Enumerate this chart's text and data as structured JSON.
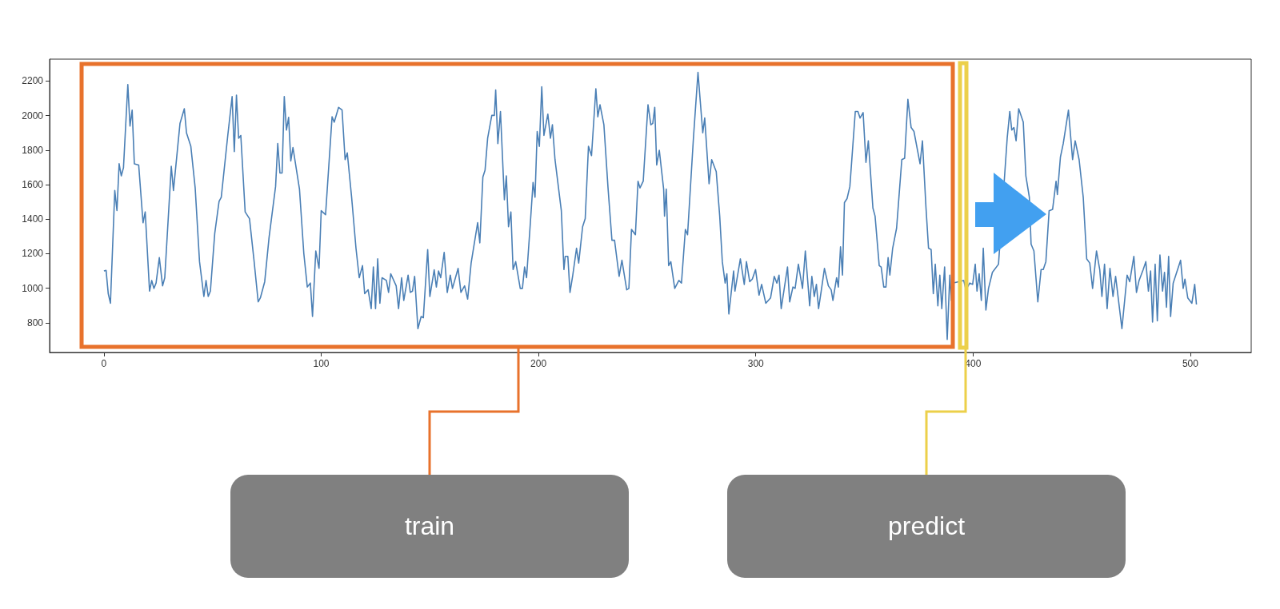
{
  "chart_data": {
    "type": "line",
    "xlim": [
      -25,
      528
    ],
    "ylim": [
      628,
      2327
    ],
    "xticks": [
      0,
      100,
      200,
      300,
      400,
      500
    ],
    "yticks": [
      800,
      1000,
      1200,
      1400,
      1600,
      1800,
      2000,
      2200
    ],
    "grid": false,
    "annotations": [
      "train",
      "predict"
    ],
    "series": [
      {
        "color": "#4a7fb5",
        "x": [
          0,
          1,
          2,
          3,
          5,
          6,
          7,
          8,
          9,
          11,
          12,
          13,
          14,
          16,
          18,
          19,
          21,
          22,
          23,
          24,
          25.5,
          27,
          28,
          31,
          32,
          35,
          37,
          38,
          40,
          42,
          44,
          46,
          47,
          48,
          49,
          51,
          53,
          54,
          57,
          59,
          60,
          61,
          62,
          63,
          65,
          67,
          69,
          71,
          72,
          74,
          76,
          79,
          80,
          81,
          82,
          83,
          84,
          85,
          86,
          87,
          90,
          92,
          93.6,
          95,
          96,
          97.5,
          99,
          100,
          102,
          105,
          106,
          108,
          109.6,
          111,
          112,
          114,
          116,
          117.5,
          119,
          120,
          121.6,
          123,
          124,
          125,
          126,
          127,
          128,
          130,
          131,
          132,
          134.5,
          135.6,
          137,
          138,
          140,
          141,
          142,
          143,
          144.5,
          146,
          147,
          149,
          150,
          152,
          153,
          154,
          155,
          156.6,
          158,
          159.4,
          160.4,
          163,
          164.3,
          166,
          167.4,
          169,
          172,
          173,
          174.4,
          175.4,
          176.6,
          178.5,
          179.7,
          180.3,
          181.3,
          182.5,
          184.3,
          185.2,
          186.2,
          187.3,
          188.3,
          189.5,
          191.6,
          192.6,
          193.6,
          194.5,
          196.3,
          197.5,
          198.4,
          199.4,
          200.4,
          201.5,
          202.5,
          204.3,
          205.5,
          206.4,
          207.6,
          210.5,
          211.7,
          212.3,
          213.5,
          214.5,
          215.7,
          217.5,
          218.5,
          220.3,
          221.5,
          223,
          224.4,
          226.4,
          227.3,
          228.3,
          230.1,
          232,
          233.8,
          235,
          237.1,
          238.4,
          240.6,
          241.6,
          242.8,
          244.6,
          245.8,
          246.7,
          248.2,
          250.4,
          251.7,
          252.6,
          253.5,
          254.4,
          255.6,
          257.6,
          258,
          258.8,
          259.9,
          260.9,
          262.7,
          264.6,
          265.8,
          267.6,
          268.6,
          271.3,
          273.4,
          275.6,
          276.5,
          278.5,
          279.7,
          281.8,
          283.4,
          284.6,
          285.9,
          286.7,
          287.6,
          289.8,
          290.4,
          292.9,
          294.7,
          295.7,
          297.2,
          298.4,
          299.9,
          301.5,
          302.7,
          304.6,
          306.8,
          308.5,
          309.7,
          310.7,
          311.7,
          314.6,
          315.6,
          317.1,
          318.1,
          319.6,
          321.5,
          322.8,
          324.8,
          325.8,
          326.9,
          327.9,
          328.9,
          330.1,
          331.6,
          333.4,
          334.7,
          335.5,
          337.2,
          338,
          339,
          339.9,
          340.8,
          342,
          343.3,
          345.8,
          347,
          348,
          349.4,
          350.7,
          351.8,
          353.9,
          354.9,
          356.8,
          357.7,
          358.9,
          359.9,
          360.9,
          361.7,
          363,
          364.8,
          367.2,
          368.5,
          370,
          371.5,
          372.8,
          375.6,
          376.7,
          378.3,
          379.5,
          380.7,
          381.7,
          382.6,
          383.8,
          384.7,
          385.6,
          386.9,
          388.1,
          389.3,
          390,
          390.6,
          392.4,
          395.7,
          396.7,
          398.5,
          399.8,
          401,
          401.8,
          402.8,
          403.8,
          404.7,
          405.9,
          407.1,
          408.9,
          410.2,
          411.7,
          413.6,
          415.7,
          416.9,
          417.8,
          418.8,
          419.8,
          421,
          423.1,
          424.3,
          425.9,
          426.7,
          428,
          429.8,
          431.3,
          432.3,
          433.5,
          435,
          436.6,
          438.2,
          438.8,
          440.2,
          441.5,
          443.9,
          445.8,
          447,
          448.8,
          450.7,
          452.3,
          453.7,
          455,
          456.8,
          458.3,
          459.3,
          460.5,
          461.7,
          463,
          464.4,
          465.6,
          468.5,
          470.9,
          472.1,
          474,
          475.2,
          476.4,
          478.3,
          479.5,
          480.7,
          481.7,
          482.6,
          483.8,
          484.8,
          486,
          487.2,
          488.1,
          489,
          490,
          490.9,
          492.1,
          495.5,
          496.7,
          497.5,
          498.8,
          500.7,
          502,
          502.8
        ],
        "values": [
          1100,
          1103,
          968,
          913,
          1566,
          1450,
          1721,
          1651,
          1698,
          2180,
          1939,
          2032,
          1721,
          1714,
          1379,
          1442,
          983,
          1045,
          999,
          1030,
          1177,
          1014,
          1061,
          1706,
          1566,
          1954,
          2040,
          1900,
          1822,
          1581,
          1154,
          952,
          1045,
          952,
          983,
          1317,
          1504,
          1527,
          1885,
          2110,
          1791,
          2118,
          1869,
          1885,
          1442,
          1403,
          1170,
          921,
          944,
          1038,
          1294,
          1589,
          1838,
          1667,
          1667,
          2110,
          1916,
          1990,
          1737,
          1815,
          1574,
          1201,
          1007,
          1030,
          836,
          1216,
          1115,
          1449,
          1426,
          1993,
          1962,
          2048,
          2032,
          1745,
          1784,
          1527,
          1232,
          1061,
          1131,
          968,
          991,
          882,
          1123,
          882,
          1170,
          913,
          1061,
          1045,
          976,
          1084,
          1014,
          882,
          1061,
          929,
          1076,
          976,
          983,
          1069,
          766,
          836,
          829,
          1224,
          952,
          1107,
          1007,
          1100,
          1061,
          1208,
          975,
          1076,
          999,
          1115,
          976,
          1014,
          937,
          1146,
          1380,
          1263,
          1644,
          1683,
          1869,
          2001,
          2001,
          2149,
          1838,
          2024,
          1512,
          1651,
          1356,
          1442,
          1108,
          1154,
          999,
          999,
          1123,
          1061,
          1387,
          1613,
          1527,
          1908,
          1822,
          2167,
          1885,
          2009,
          1869,
          1947,
          1745,
          1450,
          1108,
          1185,
          1185,
          976,
          1069,
          1232,
          1146,
          1356,
          1403,
          1822,
          1768,
          2156,
          1993,
          2063,
          1947,
          1581,
          1278,
          1278,
          1069,
          1162,
          991,
          999,
          1341,
          1310,
          1620,
          1581,
          1620,
          2063,
          1947,
          1955,
          2048,
          1714,
          1799,
          1574,
          1418,
          1574,
          1131,
          1154,
          999,
          1045,
          1030,
          1341,
          1310,
          1869,
          2250,
          1900,
          1986,
          1605,
          1745,
          1675,
          1418,
          1154,
          1030,
          1084,
          851,
          1100,
          983,
          1170,
          1022,
          1154,
          1038,
          1053,
          1108,
          960,
          1022,
          913,
          944,
          1069,
          1030,
          1076,
          882,
          1123,
          921,
          1007,
          999,
          1139,
          999,
          1216,
          898,
          1069,
          952,
          1022,
          882,
          983,
          1115,
          1014,
          991,
          929,
          1061,
          1007,
          1240,
          1076,
          1496,
          1519,
          1589,
          2024,
          2024,
          1986,
          2017,
          1729,
          1854,
          1465,
          1418,
          1131,
          1123,
          1007,
          1007,
          1177,
          1076,
          1232,
          1348,
          1745,
          1753,
          2094,
          1931,
          1908,
          1721,
          1854,
          1473,
          1232,
          1224,
          968,
          1139,
          898,
          1076,
          882,
          1123,
          703,
          1076,
          929,
          1030,
          null,
          1045,
          991,
          1030,
          1022,
          1139,
          983,
          1084,
          929,
          1232,
          874,
          999,
          1092,
          null,
          1139,
          null,
          1869,
          2024,
          1916,
          1931,
          1854,
          2040,
          1962,
          1651,
          1527,
          1255,
          1216,
          921,
          1108,
          1108,
          1154,
          1449,
          1457,
          1620,
          1543,
          1760,
          1838,
          2032,
          1745,
          1854,
          1745,
          1527,
          1170,
          1146,
          999,
          1216,
          1108,
          952,
          1139,
          882,
          1115,
          952,
          1069,
          766,
          1076,
          1038,
          1185,
          976,
          1045,
          1108,
          1154,
          983,
          1100,
          804,
          1139,
          811,
          1193,
          983,
          1092,
          890,
          1185,
          836,
          1030,
          1162,
          999,
          1053,
          944,
          913,
          1022,
          906
        ]
      }
    ]
  }
}
